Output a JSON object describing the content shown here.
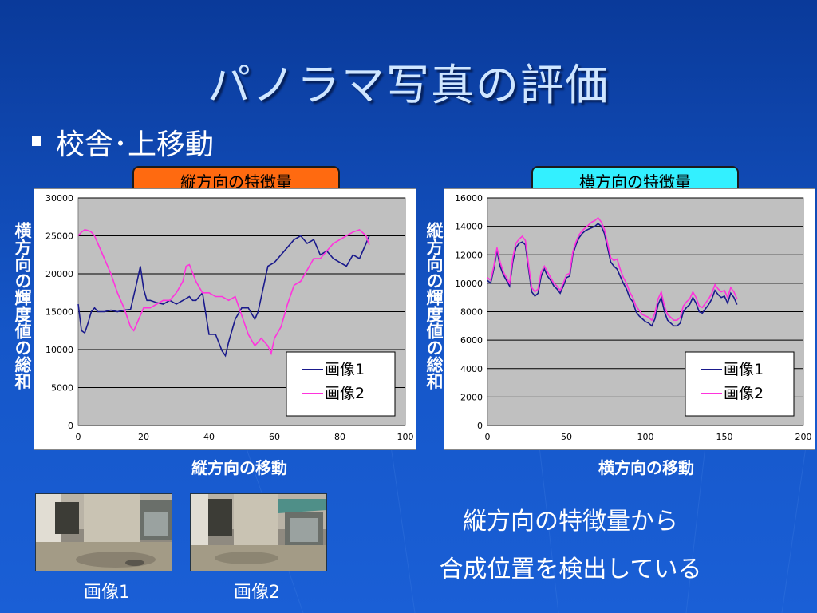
{
  "slide": {
    "title": "パノラマ写真の評価",
    "bullet": "校舎･上移動",
    "note_line1": "縦方向の特徴量から",
    "note_line2": "合成位置を検出している"
  },
  "colors": {
    "tag_left": "#ff6a10",
    "tag_right": "#33f0ff",
    "series1": "#1a1a8c",
    "series2": "#ff33dd",
    "plot_bg": "#c0c0c0"
  },
  "photos": {
    "caption1": "画像1",
    "caption2": "画像2"
  },
  "chart_data": [
    {
      "type": "line",
      "header": "縦方向の特徴量",
      "xlabel": "縦方向の移動",
      "ylabel": "横方向の輝度値の総和",
      "xlim": [
        0,
        100
      ],
      "ylim": [
        0,
        30000
      ],
      "xticks": [
        "0",
        "20",
        "40",
        "60",
        "80",
        "100"
      ],
      "yticks": [
        "0",
        "5000",
        "10000",
        "15000",
        "20000",
        "25000",
        "30000"
      ],
      "grid": true,
      "legend_position": "bottom-right",
      "series": [
        {
          "name": "画像1",
          "x": [
            0,
            1,
            2,
            3,
            4,
            5,
            6,
            8,
            10,
            12,
            14,
            16,
            18,
            19,
            20,
            21,
            22,
            24,
            26,
            28,
            30,
            32,
            34,
            35,
            36,
            38,
            40,
            42,
            44,
            45,
            46,
            48,
            50,
            52,
            54,
            55,
            56,
            58,
            60,
            62,
            64,
            66,
            68,
            70,
            72,
            74,
            76,
            78,
            80,
            82,
            84,
            86,
            88,
            89
          ],
          "y": [
            16000,
            12500,
            12200,
            13500,
            15000,
            15500,
            15000,
            15000,
            15200,
            15000,
            15200,
            15300,
            19000,
            21000,
            18000,
            16500,
            16500,
            16200,
            16000,
            16500,
            16000,
            16500,
            17000,
            16500,
            16500,
            17500,
            12000,
            12000,
            9800,
            9200,
            11000,
            14000,
            15500,
            15500,
            14000,
            15000,
            17000,
            21000,
            21500,
            22500,
            23500,
            24500,
            25000,
            24000,
            24500,
            22500,
            23000,
            22000,
            21500,
            21000,
            22500,
            22000,
            24000,
            25000
          ]
        },
        {
          "name": "画像2",
          "x": [
            0,
            1,
            2,
            3,
            4,
            5,
            6,
            8,
            10,
            12,
            14,
            16,
            17,
            18,
            20,
            22,
            24,
            26,
            28,
            30,
            32,
            33,
            34,
            36,
            38,
            40,
            42,
            44,
            46,
            48,
            50,
            52,
            54,
            56,
            58,
            59,
            60,
            62,
            64,
            66,
            68,
            70,
            72,
            74,
            76,
            78,
            80,
            82,
            84,
            86,
            88,
            89
          ],
          "y": [
            25000,
            25500,
            25800,
            25700,
            25500,
            25000,
            24000,
            22000,
            20000,
            17500,
            15500,
            13000,
            12500,
            13500,
            15500,
            15500,
            16000,
            16500,
            16500,
            17500,
            19000,
            21000,
            21200,
            19000,
            17500,
            17500,
            17000,
            17000,
            16500,
            17000,
            14500,
            12000,
            10500,
            11500,
            10500,
            9500,
            11500,
            13000,
            16000,
            18500,
            19000,
            20500,
            22000,
            22000,
            23000,
            24000,
            24500,
            25000,
            25500,
            25800,
            25000,
            23800
          ]
        }
      ]
    },
    {
      "type": "line",
      "header": "横方向の特徴量",
      "xlabel": "横方向の移動",
      "ylabel": "縦方向の輝度値の総和",
      "xlim": [
        0,
        200
      ],
      "ylim": [
        0,
        16000
      ],
      "xticks": [
        "0",
        "50",
        "100",
        "150",
        "200"
      ],
      "yticks": [
        "0",
        "2000",
        "4000",
        "6000",
        "8000",
        "10000",
        "12000",
        "14000",
        "16000"
      ],
      "grid": true,
      "legend_position": "bottom-right",
      "series": [
        {
          "name": "画像1",
          "x": [
            0,
            2,
            4,
            6,
            8,
            10,
            12,
            14,
            16,
            18,
            20,
            22,
            24,
            26,
            28,
            30,
            32,
            34,
            36,
            38,
            40,
            42,
            44,
            46,
            48,
            50,
            52,
            54,
            56,
            58,
            60,
            62,
            64,
            66,
            68,
            70,
            72,
            74,
            76,
            78,
            80,
            82,
            84,
            86,
            88,
            90,
            92,
            94,
            96,
            98,
            100,
            102,
            104,
            106,
            108,
            110,
            112,
            114,
            116,
            118,
            120,
            122,
            124,
            126,
            128,
            130,
            132,
            134,
            136,
            138,
            140,
            142,
            144,
            146,
            148,
            150,
            152,
            154,
            156,
            158
          ],
          "y": [
            10200,
            10000,
            11000,
            12300,
            11200,
            10600,
            10200,
            9800,
            11500,
            12500,
            12800,
            12900,
            12700,
            11000,
            9400,
            9100,
            9300,
            10500,
            11000,
            10500,
            10200,
            9800,
            9600,
            9300,
            9800,
            10400,
            10500,
            12000,
            12700,
            13200,
            13500,
            13700,
            13800,
            13900,
            14000,
            14200,
            14000,
            13500,
            12500,
            11500,
            11200,
            11000,
            10500,
            10000,
            9600,
            9000,
            8700,
            8000,
            7700,
            7500,
            7300,
            7200,
            7000,
            7500,
            8500,
            9000,
            8000,
            7400,
            7200,
            7000,
            7000,
            7200,
            8000,
            8300,
            8500,
            9000,
            8600,
            8000,
            7900,
            8200,
            8500,
            8900,
            9500,
            9200,
            9000,
            9100,
            8600,
            9300,
            9000,
            8500
          ]
        },
        {
          "name": "画像2",
          "x": [
            0,
            2,
            4,
            6,
            8,
            10,
            12,
            14,
            16,
            18,
            20,
            22,
            24,
            26,
            28,
            30,
            32,
            34,
            36,
            38,
            40,
            42,
            44,
            46,
            48,
            50,
            52,
            54,
            56,
            58,
            60,
            62,
            64,
            66,
            68,
            70,
            72,
            74,
            76,
            78,
            80,
            82,
            84,
            86,
            88,
            90,
            92,
            94,
            96,
            98,
            100,
            102,
            104,
            106,
            108,
            110,
            112,
            114,
            116,
            118,
            120,
            122,
            124,
            126,
            128,
            130,
            132,
            134,
            136,
            138,
            140,
            142,
            144,
            146,
            148,
            150,
            152,
            154,
            156,
            158
          ],
          "y": [
            10400,
            10200,
            11200,
            12500,
            11500,
            10800,
            10400,
            10000,
            11800,
            12800,
            13100,
            13300,
            13000,
            11300,
            9700,
            9400,
            9600,
            10800,
            11200,
            10800,
            10400,
            10000,
            9800,
            9500,
            10000,
            10600,
            10700,
            12200,
            12900,
            13400,
            13700,
            13900,
            14100,
            14300,
            14400,
            14600,
            14300,
            13800,
            12800,
            11800,
            11600,
            11700,
            11000,
            10400,
            10000,
            9400,
            9000,
            8400,
            8100,
            7800,
            7700,
            7600,
            7400,
            7900,
            8900,
            9400,
            8400,
            7800,
            7600,
            7400,
            7400,
            7600,
            8400,
            8700,
            8900,
            9400,
            9000,
            8400,
            8300,
            8600,
            8900,
            9300,
            9900,
            9600,
            9400,
            9500,
            9000,
            9700,
            9400,
            8900
          ]
        }
      ]
    }
  ]
}
